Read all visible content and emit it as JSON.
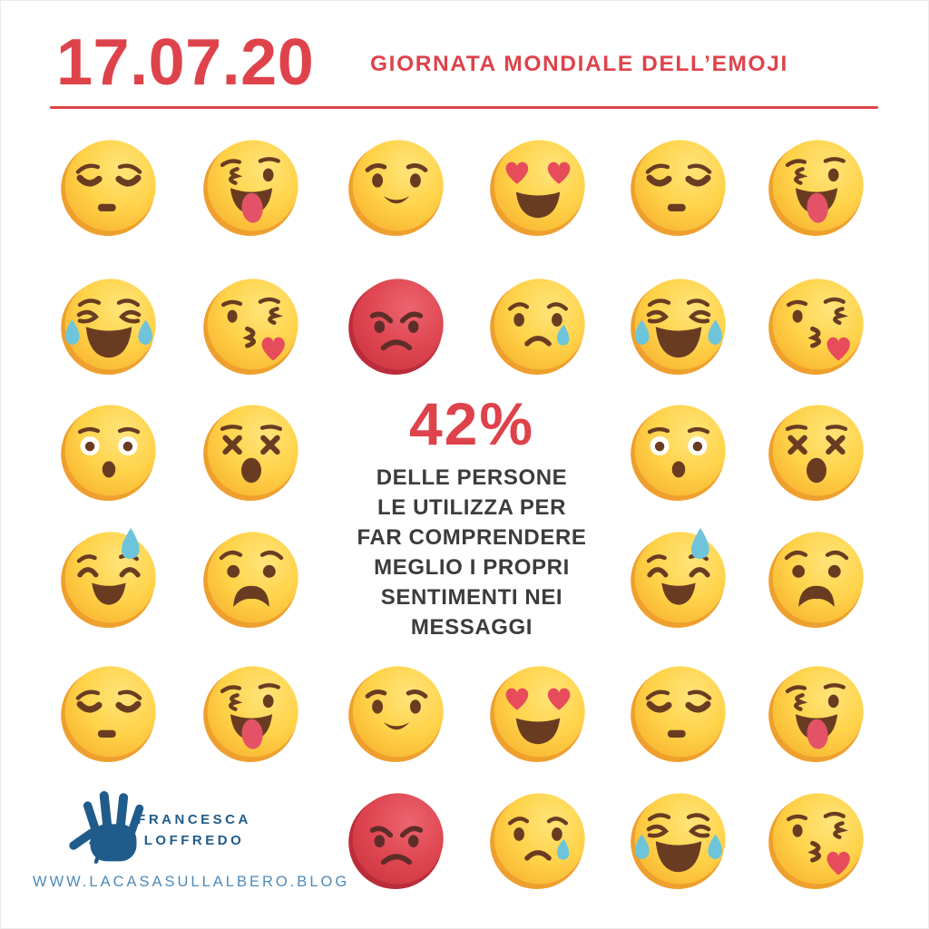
{
  "header": {
    "date": "17.07.20",
    "title": "GIORNATA MONDIALE DELL’EMOJI"
  },
  "stat": {
    "value": "42%",
    "description": "DELLE PERSONE\nLE UTILIZZA PER\nFAR COMPRENDERE\nMEGLIO I PROPRI\nSENTIMENTI NEI\nMESSAGGI"
  },
  "footer": {
    "brand": "FRANCESCA\nLOFFREDO",
    "url": "WWW.LACASASULLALBERO.BLOG",
    "logo_icon": "hands-logo-icon"
  },
  "colors": {
    "accent_red": "#DE434B",
    "text_dark": "#3C3C3C",
    "brand_blue": "#1F5C8C",
    "url_blue": "#4E8AB8",
    "emoji_yellow": "#FFD34A",
    "emoji_highlight": "#FFE47A",
    "emoji_shade": "#F7AF2B",
    "emoji_orange_rim": "#EE9F2D",
    "emoji_brown": "#693C22",
    "angry_face_red": "#DF4752",
    "angry_face_rim": "#BB2C3A",
    "angry_features": "#5E2D28",
    "tear_blue": "#6EC4DB",
    "heart_red": "#E74C5B",
    "tongue_red": "#E35266"
  },
  "emoji_grid": {
    "rows": [
      [
        "pensive-face-emoji",
        "winking-tongue-emoji",
        "slight-smile-emoji",
        "heart-eyes-emoji",
        "pensive-face-emoji",
        "winking-tongue-emoji"
      ],
      [
        "joy-tears-emoji",
        "kiss-heart-emoji",
        "angry-red-emoji",
        "crying-face-emoji",
        "joy-tears-emoji",
        "kiss-heart-emoji"
      ],
      [
        "astonished-face-emoji",
        "dizzy-face-emoji",
        null,
        null,
        "astonished-face-emoji",
        "dizzy-face-emoji"
      ],
      [
        "sweat-smile-emoji",
        "anguished-face-emoji",
        null,
        null,
        "sweat-smile-emoji",
        "anguished-face-emoji"
      ],
      [
        "pensive-face-emoji",
        "winking-tongue-emoji",
        "slight-smile-emoji",
        "heart-eyes-emoji",
        "pensive-face-emoji",
        "winking-tongue-emoji"
      ],
      [
        null,
        null,
        "angry-red-emoji",
        "crying-face-emoji",
        "joy-tears-emoji",
        "kiss-heart-emoji"
      ]
    ]
  }
}
